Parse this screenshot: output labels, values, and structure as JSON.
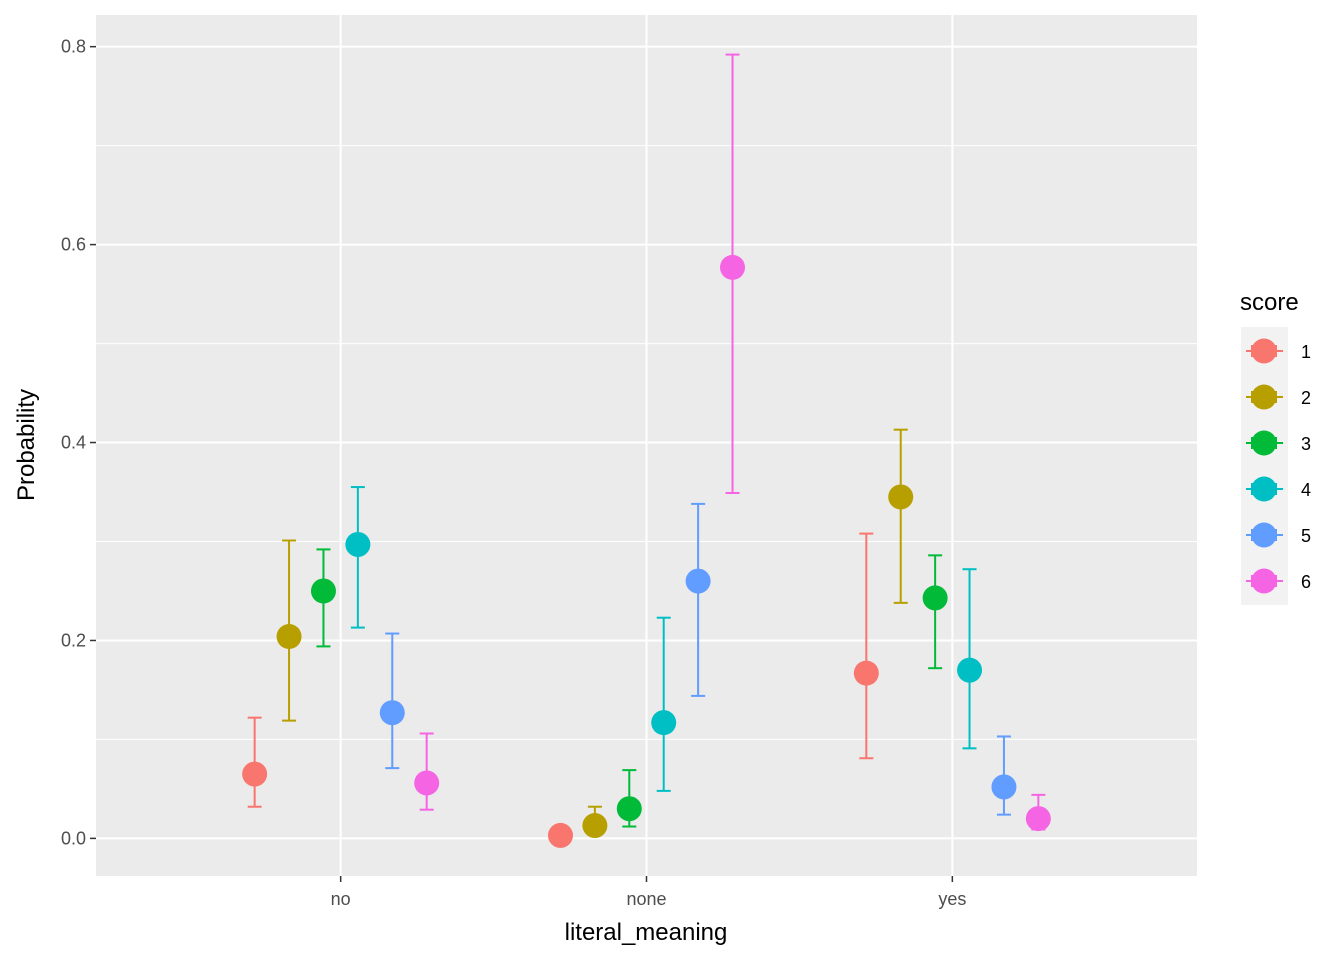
{
  "chart_data": {
    "type": "scatter",
    "xlabel": "literal_meaning",
    "ylabel": "Probability",
    "categories": [
      "no",
      "none",
      "yes"
    ],
    "ylim": [
      -0.038,
      0.832
    ],
    "yticks": [
      {
        "value": 0.0,
        "label": "0.0"
      },
      {
        "value": 0.2,
        "label": "0.2"
      },
      {
        "value": 0.4,
        "label": "0.4"
      },
      {
        "value": 0.6,
        "label": "0.6"
      },
      {
        "value": 0.8,
        "label": "0.8"
      }
    ],
    "grid": true,
    "legend_position": "right",
    "legend_title": "score",
    "series": [
      {
        "name": "1",
        "color": "#F8766D",
        "points": [
          {
            "category": "no",
            "value": 0.065,
            "lower": 0.032,
            "upper": 0.122
          },
          {
            "category": "none",
            "value": 0.003,
            "lower": 0.001,
            "upper": 0.005
          },
          {
            "category": "yes",
            "value": 0.167,
            "lower": 0.081,
            "upper": 0.308
          }
        ]
      },
      {
        "name": "2",
        "color": "#B79F00",
        "points": [
          {
            "category": "no",
            "value": 0.204,
            "lower": 0.119,
            "upper": 0.301
          },
          {
            "category": "none",
            "value": 0.013,
            "lower": 0.005,
            "upper": 0.032
          },
          {
            "category": "yes",
            "value": 0.345,
            "lower": 0.238,
            "upper": 0.413
          }
        ]
      },
      {
        "name": "3",
        "color": "#00BA38",
        "points": [
          {
            "category": "no",
            "value": 0.25,
            "lower": 0.194,
            "upper": 0.292
          },
          {
            "category": "none",
            "value": 0.03,
            "lower": 0.012,
            "upper": 0.069
          },
          {
            "category": "yes",
            "value": 0.243,
            "lower": 0.172,
            "upper": 0.286
          }
        ]
      },
      {
        "name": "4",
        "color": "#00BFC4",
        "points": [
          {
            "category": "no",
            "value": 0.297,
            "lower": 0.213,
            "upper": 0.355
          },
          {
            "category": "none",
            "value": 0.117,
            "lower": 0.048,
            "upper": 0.223
          },
          {
            "category": "yes",
            "value": 0.17,
            "lower": 0.091,
            "upper": 0.272
          }
        ]
      },
      {
        "name": "5",
        "color": "#619CFF",
        "points": [
          {
            "category": "no",
            "value": 0.127,
            "lower": 0.071,
            "upper": 0.207
          },
          {
            "category": "none",
            "value": 0.26,
            "lower": 0.144,
            "upper": 0.338
          },
          {
            "category": "yes",
            "value": 0.052,
            "lower": 0.024,
            "upper": 0.103
          }
        ]
      },
      {
        "name": "6",
        "color": "#F564E3",
        "points": [
          {
            "category": "no",
            "value": 0.056,
            "lower": 0.029,
            "upper": 0.106
          },
          {
            "category": "none",
            "value": 0.577,
            "lower": 0.349,
            "upper": 0.792
          },
          {
            "category": "yes",
            "value": 0.02,
            "lower": 0.009,
            "upper": 0.044
          }
        ]
      }
    ]
  }
}
